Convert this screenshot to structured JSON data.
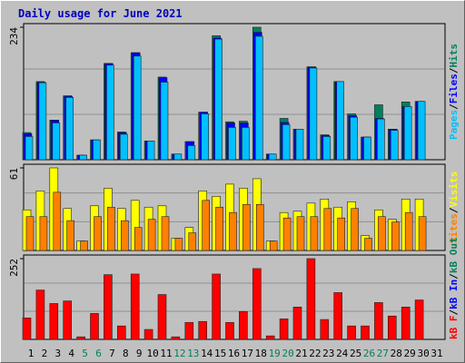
{
  "chart_data": [
    {
      "type": "bar",
      "title": "Daily usage for June 2021",
      "ylim": [
        0,
        234
      ],
      "yticks": [
        234
      ],
      "legend_reversed": true,
      "legend_separator": "/",
      "series": [
        {
          "name": "Hits",
          "color": "#00805c",
          "values": [
            48,
            138,
            70,
            113,
            8,
            35,
            170,
            49,
            189,
            33,
            146,
            10,
            32,
            84,
            219,
            67,
            68,
            234,
            10,
            73,
            54,
            164,
            44,
            138,
            81,
            40,
            97,
            54,
            102,
            103,
            0
          ]
        },
        {
          "name": "Files",
          "color": "#0000ff",
          "values": [
            46,
            137,
            70,
            112,
            8,
            35,
            170,
            48,
            189,
            33,
            145,
            10,
            32,
            84,
            215,
            65,
            65,
            225,
            10,
            66,
            54,
            164,
            43,
            138,
            78,
            40,
            73,
            54,
            94,
            103,
            0
          ]
        },
        {
          "name": "Pages",
          "color": "#00c0ff",
          "values": [
            41,
            136,
            65,
            110,
            8,
            35,
            167,
            45,
            183,
            33,
            137,
            10,
            25,
            81,
            213,
            57,
            57,
            218,
            10,
            62,
            54,
            162,
            41,
            138,
            75,
            40,
            72,
            52,
            94,
            103,
            0
          ]
        }
      ]
    },
    {
      "type": "bar",
      "ylim": [
        0,
        61
      ],
      "yticks": [
        61
      ],
      "legend_reversed": true,
      "legend_separator": "/",
      "series": [
        {
          "name": "Visits",
          "color": "#ffff00",
          "values": [
            30,
            44,
            61,
            31,
            7,
            33,
            46,
            31,
            37,
            32,
            33,
            9,
            17,
            44,
            40,
            49,
            46,
            53,
            7,
            28,
            29,
            35,
            38,
            32,
            36,
            11,
            30,
            23,
            38,
            38,
            0
          ]
        },
        {
          "name": "Sites",
          "color": "#ff8000",
          "values": [
            25,
            25,
            43,
            22,
            7,
            25,
            32,
            22,
            17,
            23,
            25,
            9,
            13,
            37,
            32,
            28,
            34,
            34,
            7,
            24,
            25,
            25,
            31,
            24,
            31,
            9,
            25,
            21,
            28,
            25,
            0
          ]
        }
      ]
    },
    {
      "type": "bar",
      "ylim": [
        0,
        252
      ],
      "yticks": [
        252
      ],
      "legend_reversed": false,
      "legend_separator": "/",
      "categories": [
        "1",
        "2",
        "3",
        "4",
        "5",
        "6",
        "7",
        "8",
        "9",
        "10",
        "11",
        "12",
        "13",
        "14",
        "15",
        "16",
        "17",
        "18",
        "19",
        "20",
        "21",
        "22",
        "23",
        "24",
        "25",
        "26",
        "27",
        "28",
        "29",
        "30",
        "31"
      ],
      "category_colors": [
        "#000000",
        "#000000",
        "#000000",
        "#000000",
        "#00805c",
        "#00805c",
        "#000000",
        "#000000",
        "#000000",
        "#000000",
        "#000000",
        "#00805c",
        "#00805c",
        "#000000",
        "#000000",
        "#000000",
        "#000000",
        "#000000",
        "#00805c",
        "#00805c",
        "#000000",
        "#000000",
        "#000000",
        "#000000",
        "#000000",
        "#00805c",
        "#00805c",
        "#000000",
        "#000000",
        "#000000",
        "#000000"
      ],
      "series": [
        {
          "name": "kB F",
          "color": "#ff0000",
          "values": [
            67,
            154,
            112,
            120,
            8,
            81,
            202,
            42,
            204,
            31,
            140,
            8,
            53,
            56,
            204,
            53,
            87,
            221,
            11,
            64,
            101,
            252,
            62,
            146,
            42,
            42,
            115,
            73,
            101,
            123,
            0
          ]
        },
        {
          "name": "kB In",
          "color": "#0000ff",
          "values": [
            0,
            0,
            0,
            0,
            0,
            0,
            0,
            0,
            0,
            0,
            0,
            0,
            0,
            0,
            0,
            0,
            0,
            0,
            0,
            0,
            0,
            0,
            0,
            0,
            0,
            0,
            0,
            0,
            0,
            0,
            0
          ]
        },
        {
          "name": "kB Out",
          "color": "#00805c",
          "values": [
            0,
            0,
            0,
            0,
            0,
            0,
            0,
            0,
            0,
            0,
            0,
            0,
            0,
            0,
            0,
            0,
            0,
            0,
            0,
            0,
            0,
            0,
            0,
            0,
            0,
            0,
            0,
            0,
            0,
            0,
            0
          ]
        }
      ]
    }
  ]
}
